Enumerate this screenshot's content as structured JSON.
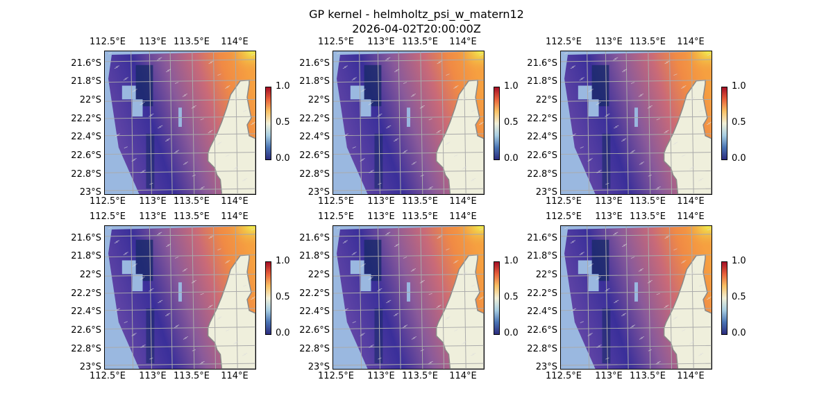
{
  "figure": {
    "title": "GP kernel - helmholtz_psi_w_matern12",
    "subtitle": "2026-04-02T20:00:00Z"
  },
  "axes": {
    "lon_ticks": [
      "112.5°E",
      "113°E",
      "113.5°E",
      "114°E"
    ],
    "lat_ticks": [
      "21.6°S",
      "21.8°S",
      "22°S",
      "22.2°S",
      "22.4°S",
      "22.6°S",
      "22.8°S",
      "23°S"
    ],
    "colorbar_ticks": [
      "1.0",
      "0.5",
      "0.0"
    ],
    "colorbar_range": [
      0,
      1
    ]
  },
  "panels": [
    {
      "id": 1
    },
    {
      "id": 2
    },
    {
      "id": 3
    },
    {
      "id": 4
    },
    {
      "id": 5
    },
    {
      "id": 6
    }
  ],
  "colors": {
    "ocean": "#9ab8e0",
    "land": "#efefdc",
    "coast": "#888888",
    "grid": "#aaaaaa"
  }
}
